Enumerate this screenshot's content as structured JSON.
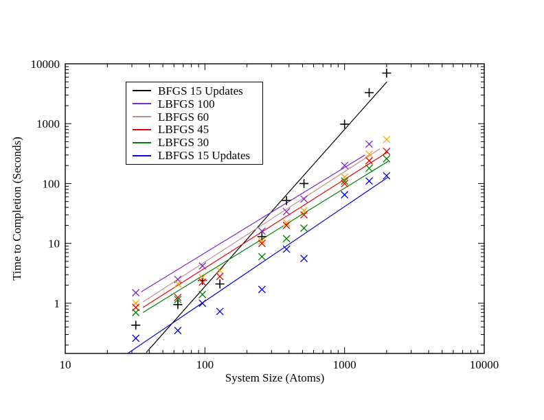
{
  "chart_data": {
    "type": "scatter",
    "title": "",
    "xlabel": "System Size (Atoms)",
    "ylabel": "Time to Completion (Seconds)",
    "xscale": "log",
    "yscale": "log",
    "xlim": [
      10,
      10000
    ],
    "ylim": [
      0.145,
      10000
    ],
    "x_major_ticks": [
      10,
      100,
      1000,
      10000
    ],
    "y_major_ticks": [
      1,
      10,
      100,
      1000,
      10000
    ],
    "x_tick_labels": [
      "10",
      "100",
      "1000",
      "10000"
    ],
    "y_tick_labels": [
      "1",
      "10",
      "100",
      "1000",
      "10000"
    ],
    "grid": "off",
    "legend_position": "upper-left-inside",
    "series": [
      {
        "name": "BFGS 15 Updates",
        "color": "#000000",
        "marker": "plus",
        "points": [
          [
            32,
            0.43
          ],
          [
            64,
            0.95
          ],
          [
            96,
            2.4
          ],
          [
            128,
            2.1
          ],
          [
            256,
            13
          ],
          [
            384,
            52
          ],
          [
            512,
            100
          ],
          [
            1000,
            980
          ],
          [
            1500,
            3300
          ],
          [
            2000,
            7000
          ]
        ],
        "fit_line": [
          [
            38,
            0.15
          ],
          [
            2010,
            5000
          ]
        ]
      },
      {
        "name": "LBFGS 100",
        "color": "#7D26CD",
        "marker": "x",
        "points": [
          [
            32,
            1.5
          ],
          [
            64,
            2.5
          ],
          [
            96,
            4.2
          ],
          [
            256,
            16
          ],
          [
            384,
            34
          ],
          [
            512,
            55
          ],
          [
            1000,
            200
          ],
          [
            1500,
            455
          ]
        ],
        "fit_line": [
          [
            35,
            1.55
          ],
          [
            1400,
            300
          ]
        ]
      },
      {
        "name": "LBFGS 60",
        "color": "#BC8F8F",
        "marker_color": "#FFA500",
        "marker": "x",
        "points": [
          [
            32,
            1.0
          ],
          [
            64,
            2.1
          ],
          [
            96,
            2.7
          ],
          [
            128,
            3.5
          ],
          [
            256,
            11
          ],
          [
            384,
            22
          ],
          [
            512,
            35
          ],
          [
            1000,
            128
          ],
          [
            1500,
            310
          ],
          [
            2000,
            545
          ]
        ],
        "fit_line": [
          [
            36,
            1.05
          ],
          [
            1790,
            380
          ]
        ]
      },
      {
        "name": "LBFGS 45",
        "color": "#E60000",
        "marker": "x",
        "points": [
          [
            32,
            0.85
          ],
          [
            64,
            1.25
          ],
          [
            96,
            2.25
          ],
          [
            128,
            2.8
          ],
          [
            256,
            10
          ],
          [
            384,
            20
          ],
          [
            512,
            30
          ],
          [
            1000,
            100
          ],
          [
            1500,
            240
          ],
          [
            2000,
            345
          ]
        ],
        "fit_line": [
          [
            36,
            0.85
          ],
          [
            2050,
            340
          ]
        ]
      },
      {
        "name": "LBFGS 30",
        "color": "#008000",
        "marker": "x",
        "points": [
          [
            32,
            0.7
          ],
          [
            64,
            1.15
          ],
          [
            96,
            1.4
          ],
          [
            256,
            6
          ],
          [
            384,
            12
          ],
          [
            512,
            18
          ],
          [
            1000,
            110
          ],
          [
            1500,
            180
          ],
          [
            2000,
            260
          ]
        ],
        "fit_line": [
          [
            36,
            0.7
          ],
          [
            2050,
            235
          ]
        ]
      },
      {
        "name": "LBFGS 15 Updates",
        "color": "#0000E0",
        "marker": "x",
        "points": [
          [
            32,
            0.26
          ],
          [
            64,
            0.35
          ],
          [
            96,
            1.0
          ],
          [
            128,
            0.73
          ],
          [
            256,
            1.7
          ],
          [
            384,
            8
          ],
          [
            512,
            5.6
          ],
          [
            1000,
            65
          ],
          [
            1500,
            110
          ],
          [
            2000,
            135
          ]
        ],
        "fit_line": [
          [
            28,
            0.145
          ],
          [
            2040,
            127
          ]
        ]
      }
    ]
  }
}
